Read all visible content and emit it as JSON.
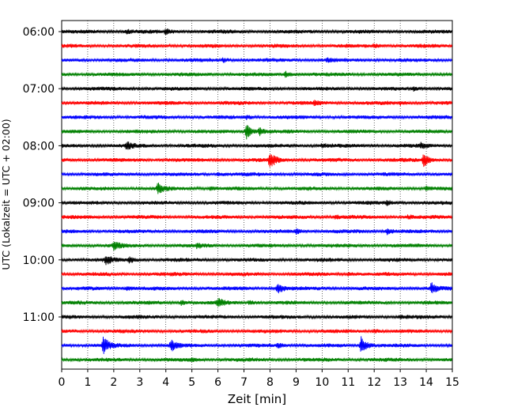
{
  "chart_data": {
    "type": "line",
    "title": "",
    "xlabel": "Zeit  [min]",
    "ylabel": "UTC (Lokalzeit = UTC + 02:00)",
    "xlim": [
      0,
      15
    ],
    "x_ticks": [
      "0",
      "1",
      "2",
      "3",
      "4",
      "5",
      "6",
      "7",
      "8",
      "9",
      "10",
      "11",
      "12",
      "13",
      "14",
      "15"
    ],
    "y_tick_labels": [
      "06:00",
      "07:00",
      "08:00",
      "09:00",
      "10:00",
      "11:00"
    ],
    "grid": "vertical dotted",
    "trace_interval_minutes": 15,
    "traces": [
      {
        "start": "06:00",
        "color": "#000000",
        "events": [
          {
            "t": 4.0,
            "amp": 0.5
          },
          {
            "t": 2.5,
            "amp": 0.3
          }
        ]
      },
      {
        "start": "06:15",
        "color": "#ff0000",
        "events": [
          {
            "t": 12.0,
            "amp": 0.3
          }
        ]
      },
      {
        "start": "06:30",
        "color": "#0000ff",
        "events": [
          {
            "t": 6.2,
            "amp": 0.3
          },
          {
            "t": 10.2,
            "amp": 0.3
          }
        ]
      },
      {
        "start": "06:45",
        "color": "#008000",
        "events": [
          {
            "t": 8.6,
            "amp": 0.5
          }
        ]
      },
      {
        "start": "07:00",
        "color": "#000000",
        "events": [
          {
            "t": 13.5,
            "amp": 0.3
          }
        ]
      },
      {
        "start": "07:15",
        "color": "#ff0000",
        "events": [
          {
            "t": 9.7,
            "amp": 0.3
          },
          {
            "t": 13.0,
            "amp": 0.3
          }
        ]
      },
      {
        "start": "07:30",
        "color": "#0000ff",
        "events": [
          {
            "t": 7.1,
            "amp": 0.3
          }
        ]
      },
      {
        "start": "07:45",
        "color": "#008000",
        "events": [
          {
            "t": 7.1,
            "amp": 1.4
          },
          {
            "t": 7.6,
            "amp": 0.6
          }
        ]
      },
      {
        "start": "08:00",
        "color": "#000000",
        "events": [
          {
            "t": 2.5,
            "amp": 0.7
          },
          {
            "t": 10.0,
            "amp": 0.3
          },
          {
            "t": 13.8,
            "amp": 0.5
          }
        ]
      },
      {
        "start": "08:15",
        "color": "#ff0000",
        "events": [
          {
            "t": 8.0,
            "amp": 1.6
          },
          {
            "t": 13.9,
            "amp": 1.2
          }
        ]
      },
      {
        "start": "08:30",
        "color": "#0000ff",
        "events": [
          {
            "t": 6.0,
            "amp": 0.3
          }
        ]
      },
      {
        "start": "08:45",
        "color": "#008000",
        "events": [
          {
            "t": 3.7,
            "amp": 0.9
          },
          {
            "t": 5.7,
            "amp": 0.4
          },
          {
            "t": 14.0,
            "amp": 0.3
          }
        ]
      },
      {
        "start": "09:00",
        "color": "#000000",
        "events": [
          {
            "t": 12.5,
            "amp": 0.3
          }
        ]
      },
      {
        "start": "09:15",
        "color": "#ff0000",
        "events": [
          {
            "t": 10.5,
            "amp": 0.3
          },
          {
            "t": 13.3,
            "amp": 0.3
          }
        ]
      },
      {
        "start": "09:30",
        "color": "#0000ff",
        "events": [
          {
            "t": 9.0,
            "amp": 0.4
          },
          {
            "t": 12.5,
            "amp": 0.5
          }
        ]
      },
      {
        "start": "09:45",
        "color": "#008000",
        "events": [
          {
            "t": 2.0,
            "amp": 0.8
          },
          {
            "t": 5.2,
            "amp": 0.3
          }
        ]
      },
      {
        "start": "10:00",
        "color": "#000000",
        "events": [
          {
            "t": 1.7,
            "amp": 0.8
          },
          {
            "t": 2.6,
            "amp": 0.5
          }
        ]
      },
      {
        "start": "10:15",
        "color": "#ff0000",
        "events": [
          {
            "t": 11.0,
            "amp": 0.3
          }
        ]
      },
      {
        "start": "10:30",
        "color": "#0000ff",
        "events": [
          {
            "t": 2.5,
            "amp": 0.4
          },
          {
            "t": 8.3,
            "amp": 1.0
          },
          {
            "t": 14.2,
            "amp": 1.0
          }
        ]
      },
      {
        "start": "10:45",
        "color": "#008000",
        "events": [
          {
            "t": 4.6,
            "amp": 0.4
          },
          {
            "t": 6.0,
            "amp": 0.8
          },
          {
            "t": 7.2,
            "amp": 0.4
          }
        ]
      },
      {
        "start": "11:00",
        "color": "#000000",
        "events": [
          {
            "t": 13.0,
            "amp": 0.3
          }
        ]
      },
      {
        "start": "11:15",
        "color": "#ff0000",
        "events": [
          {
            "t": 12.0,
            "amp": 0.3
          }
        ]
      },
      {
        "start": "11:30",
        "color": "#0000ff",
        "events": [
          {
            "t": 1.6,
            "amp": 1.6
          },
          {
            "t": 4.2,
            "amp": 1.0
          },
          {
            "t": 11.5,
            "amp": 1.6
          },
          {
            "t": 8.3,
            "amp": 0.4
          }
        ]
      },
      {
        "start": "11:45",
        "color": "#008000",
        "events": [
          {
            "t": 5.0,
            "amp": 0.3
          }
        ]
      }
    ]
  }
}
